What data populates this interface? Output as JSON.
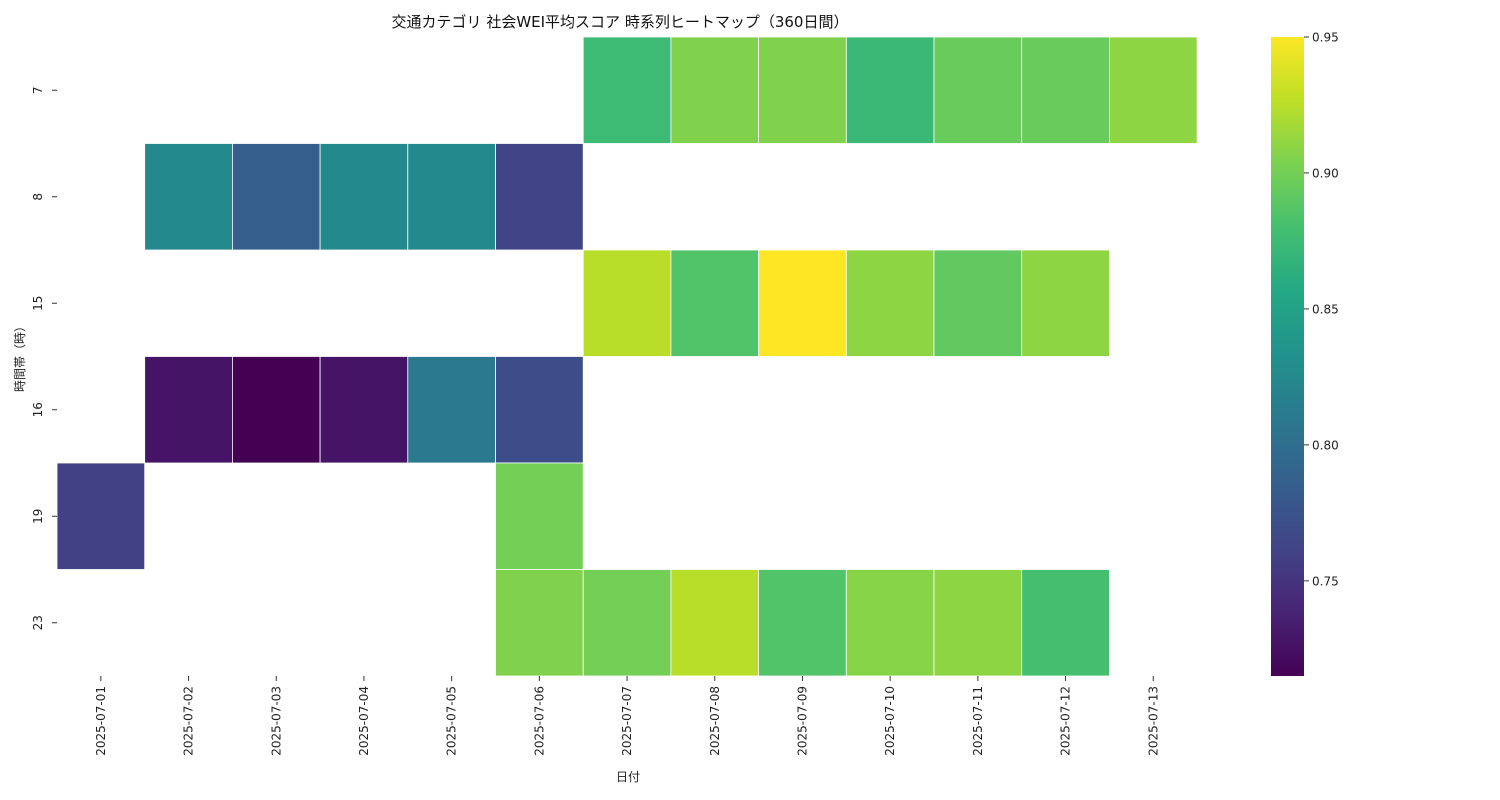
{
  "chart_data": {
    "type": "heatmap",
    "title": "交通カテゴリ 社会WEI平均スコア 時系列ヒートマップ（360日間）",
    "xlabel": "日付",
    "ylabel": "時間帯（時）",
    "x_categories": [
      "2025-07-01",
      "2025-07-02",
      "2025-07-03",
      "2025-07-04",
      "2025-07-05",
      "2025-07-06",
      "2025-07-07",
      "2025-07-08",
      "2025-07-09",
      "2025-07-10",
      "2025-07-11",
      "2025-07-12",
      "2025-07-13"
    ],
    "y_categories": [
      "7",
      "8",
      "15",
      "16",
      "19",
      "23"
    ],
    "values": [
      [
        null,
        null,
        null,
        null,
        null,
        null,
        0.875,
        0.905,
        0.905,
        0.872,
        0.895,
        0.895,
        0.91
      ],
      [
        null,
        0.825,
        0.785,
        0.825,
        0.825,
        0.762,
        null,
        null,
        null,
        null,
        null,
        null,
        null
      ],
      [
        null,
        null,
        null,
        null,
        null,
        null,
        0.925,
        0.885,
        0.95,
        0.91,
        0.892,
        0.91,
        null
      ],
      [
        null,
        0.728,
        0.715,
        0.728,
        0.81,
        0.77,
        null,
        null,
        null,
        null,
        null,
        null,
        null
      ],
      [
        0.76,
        null,
        null,
        null,
        null,
        0.9,
        null,
        null,
        null,
        null,
        null,
        null,
        null
      ],
      [
        null,
        null,
        null,
        null,
        null,
        0.905,
        0.9,
        0.925,
        0.885,
        0.908,
        0.91,
        0.88,
        null
      ]
    ],
    "colorbar": {
      "min": 0.715,
      "max": 0.95,
      "ticks": [
        0.75,
        0.8,
        0.85,
        0.9,
        0.95
      ],
      "tick_labels": [
        "0.75",
        "0.80",
        "0.85",
        "0.90",
        "0.95"
      ],
      "colormap": "viridis"
    },
    "grid": false
  }
}
